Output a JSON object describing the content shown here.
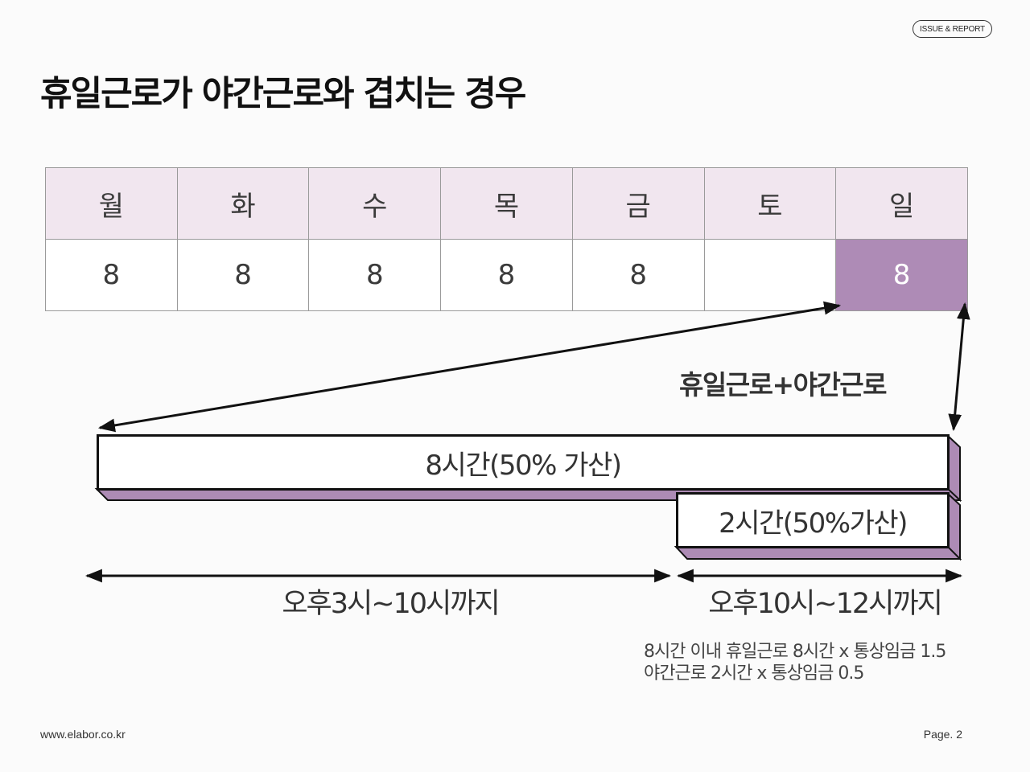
{
  "header": {
    "badge": "ISSUE & REPORT"
  },
  "title": "휴일근로가 야간근로와 겹치는 경우",
  "week": {
    "days": [
      "월",
      "화",
      "수",
      "목",
      "금",
      "토",
      "일"
    ],
    "hours": [
      "8",
      "8",
      "8",
      "8",
      "8",
      "",
      "8"
    ],
    "highlight_day": "일"
  },
  "diagram": {
    "combo_label": "휴일근로+야간근로",
    "bar_8h": "8시간(50% 가산)",
    "bar_2h": "2시간(50%가산)",
    "range_1": "오후3시~10시까지",
    "range_2": "오후10시~12시까지"
  },
  "notes": [
    "8시간 이내 휴일근로 8시간 x 통상임금 1.5",
    "야간근로 2시간 x 통상임금 0.5"
  ],
  "footer": {
    "url": "www.elabor.co.kr",
    "page": "Page. 2"
  },
  "colors": {
    "header_row": "#f1e6ef",
    "highlight": "#ae8bb6",
    "bar_shadow": "#ad8bb5",
    "border": "#111111"
  }
}
